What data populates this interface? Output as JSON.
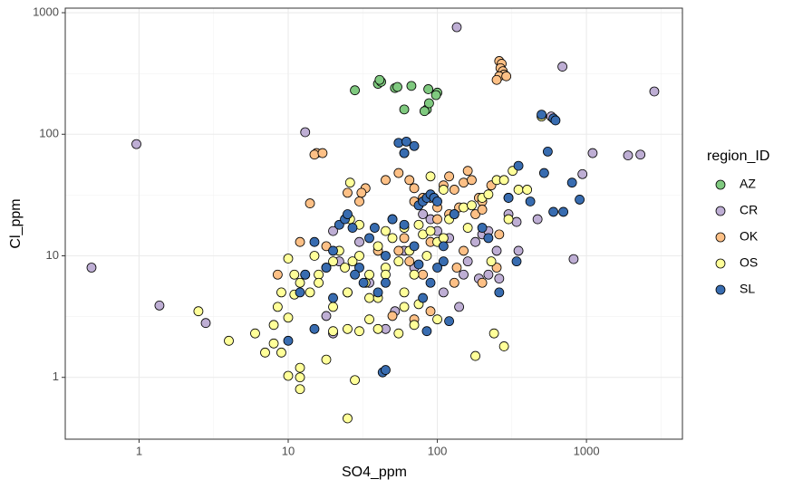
{
  "chart_data": {
    "type": "scatter",
    "x_label": "SO4_ppm",
    "y_label": "Cl_ppm",
    "legend_title": "region_ID",
    "legend": "right",
    "log_x": true,
    "log_y": true,
    "grid": true,
    "xlim": [
      0.32,
      4400
    ],
    "ylim": [
      0.31,
      1090
    ],
    "xticks": [
      1,
      10,
      100,
      1000
    ],
    "yticks": [
      1,
      10,
      100,
      1000
    ],
    "series": [
      {
        "name": "AZ",
        "color": "#7fc97f",
        "x": [
          28,
          40,
          42,
          41,
          52,
          54,
          67,
          60,
          85,
          87,
          100,
          98,
          88,
          82
        ],
        "values": [
          230,
          260,
          270,
          280,
          240,
          245,
          250,
          160,
          160,
          235,
          220,
          210,
          180,
          155
        ]
      },
      {
        "name": "CR",
        "color": "#beaed4",
        "x": [
          0.48,
          0.96,
          1.37,
          2.8,
          13,
          135,
          690,
          2850,
          580,
          1100,
          1900,
          2300,
          940,
          820,
          340,
          470,
          20,
          22,
          18,
          20,
          25,
          35,
          45,
          52,
          60,
          70,
          80,
          90,
          100,
          110,
          120,
          150,
          160,
          180,
          200,
          220,
          250,
          260,
          300,
          350,
          140,
          190,
          220,
          30
        ],
        "values": [
          8,
          83,
          3.9,
          2.8,
          104,
          760,
          360,
          225,
          140,
          70,
          67,
          68,
          47,
          9.4,
          19,
          20,
          16,
          9,
          3.2,
          2.3,
          5,
          6,
          2.5,
          3.5,
          11,
          8,
          22,
          20,
          16,
          5,
          14,
          7,
          9,
          13,
          15,
          16,
          11,
          6.5,
          22,
          11,
          3.8,
          6.5,
          7,
          13
        ]
      },
      {
        "name": "OK",
        "color": "#fdc086",
        "x": [
          260,
          270,
          265,
          275,
          280,
          260,
          290,
          250,
          15.5,
          15,
          17,
          14,
          33,
          31,
          18,
          8.5,
          12,
          45,
          55,
          65,
          70,
          80,
          90,
          100,
          110,
          120,
          130,
          140,
          150,
          160,
          170,
          180,
          190,
          200,
          230,
          120,
          100,
          70,
          60,
          55,
          65,
          80,
          90,
          50,
          40,
          30,
          25,
          200,
          260,
          135,
          130,
          200,
          250,
          90,
          70,
          150
        ],
        "values": [
          400,
          380,
          350,
          330,
          310,
          300,
          300,
          280,
          70,
          68,
          70,
          27,
          36,
          33,
          12,
          7,
          13,
          42,
          48,
          42,
          36,
          30,
          30,
          25,
          38,
          45,
          35,
          25,
          40,
          50,
          42,
          22,
          30,
          28,
          38,
          22,
          20,
          28,
          14,
          11,
          9,
          7,
          13,
          3.2,
          11,
          28,
          33,
          24,
          15,
          8,
          6,
          6,
          8,
          3.5,
          3,
          11
        ]
      },
      {
        "name": "OS",
        "color": "#ffff99",
        "x": [
          25,
          12,
          12,
          12,
          10,
          9,
          8,
          7,
          6,
          4,
          2.5,
          8.5,
          10,
          11,
          12,
          13,
          14,
          15,
          16,
          18,
          20,
          22,
          24,
          25,
          27,
          30,
          33,
          35,
          40,
          45,
          50,
          55,
          60,
          65,
          70,
          75,
          80,
          85,
          90,
          100,
          110,
          120,
          130,
          150,
          170,
          200,
          220,
          250,
          280,
          300,
          320,
          350,
          400,
          300,
          500,
          60,
          30,
          20,
          25,
          30,
          35,
          40,
          55,
          70,
          100,
          28,
          18,
          240,
          280,
          180,
          20,
          16,
          10,
          11,
          9,
          8,
          26,
          50,
          35,
          40,
          45,
          60,
          75,
          110,
          90,
          45,
          230,
          160,
          60,
          26
        ],
        "values": [
          0.46,
          1,
          0.8,
          1.2,
          1.03,
          1.6,
          1.9,
          1.6,
          2.3,
          2,
          3.5,
          3.8,
          3.1,
          4.8,
          6,
          7,
          5,
          10,
          7,
          8,
          9,
          11,
          8,
          5,
          9,
          10,
          6,
          7,
          12,
          8,
          14,
          9,
          5,
          11,
          7,
          4,
          15,
          10,
          16,
          13,
          14,
          20,
          22,
          25,
          26,
          30,
          32,
          42,
          42,
          30,
          50,
          35,
          35,
          20,
          140,
          70,
          18,
          2.4,
          2.5,
          2.4,
          3,
          2.5,
          2.3,
          2.7,
          3,
          0.95,
          1.4,
          2.3,
          1.8,
          1.5,
          3.8,
          6,
          9.5,
          7,
          5,
          2.7,
          20,
          20,
          4.5,
          4.5,
          16,
          17,
          18,
          35,
          45,
          7,
          9,
          17,
          3.8,
          40
        ]
      },
      {
        "name": "SL",
        "color": "#386cb0",
        "x": [
          43,
          45,
          10,
          12,
          13,
          15,
          18,
          20,
          22,
          24,
          25,
          27,
          30,
          32,
          35,
          38,
          40,
          45,
          45,
          50,
          55,
          60,
          62,
          70,
          75,
          80,
          85,
          90,
          95,
          100,
          110,
          120,
          85,
          80,
          90,
          100,
          110,
          200,
          220,
          260,
          300,
          350,
          340,
          420,
          500,
          550,
          520,
          600,
          620,
          600,
          700,
          800,
          900,
          20,
          28,
          60,
          75,
          130,
          70,
          15
        ],
        "values": [
          1.1,
          1.15,
          2,
          5,
          7,
          13,
          8,
          11,
          18,
          20,
          22,
          17,
          8,
          6,
          14,
          17,
          5,
          10,
          6,
          20,
          85,
          70,
          87,
          80,
          26,
          28,
          30,
          32,
          30,
          28,
          9,
          2.9,
          2.4,
          4.5,
          6,
          8,
          12,
          17,
          14,
          5,
          30,
          55,
          9,
          28,
          145,
          72,
          48,
          135,
          130,
          23,
          23,
          40,
          29,
          4.5,
          7,
          18,
          8.5,
          22,
          12,
          2.5
        ]
      }
    ]
  }
}
